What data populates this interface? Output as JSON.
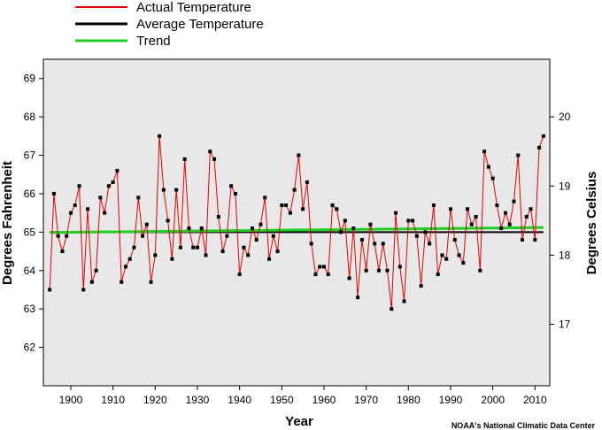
{
  "chart_data": {
    "type": "line",
    "title": "",
    "xlabel": "Year",
    "ylabel": "Degrees Fahrenheit",
    "y2label": "Degrees Celsius",
    "xlim": [
      1893.5,
      2013.5
    ],
    "ylim": [
      61.0,
      69.5
    ],
    "x_ticks": [
      1900,
      1910,
      1920,
      1930,
      1940,
      1950,
      1960,
      1970,
      1980,
      1990,
      2000,
      2010
    ],
    "y_ticks": [
      62,
      63,
      64,
      65,
      66,
      67,
      68,
      69
    ],
    "y2_ticks": [
      17,
      18,
      19,
      20
    ],
    "credit": "NOAA's National Climatic Data Center",
    "legend_position": "top-left",
    "grid": false,
    "plot_background": "#e8e8e8",
    "series": [
      {
        "name": "Actual Temperature",
        "color": "#e60000",
        "x": [
          1895,
          1896,
          1897,
          1898,
          1899,
          1900,
          1901,
          1902,
          1903,
          1904,
          1905,
          1906,
          1907,
          1908,
          1909,
          1910,
          1911,
          1912,
          1913,
          1914,
          1915,
          1916,
          1917,
          1918,
          1919,
          1920,
          1921,
          1922,
          1923,
          1924,
          1925,
          1926,
          1927,
          1928,
          1929,
          1930,
          1931,
          1932,
          1933,
          1934,
          1935,
          1936,
          1937,
          1938,
          1939,
          1940,
          1941,
          1942,
          1943,
          1944,
          1945,
          1946,
          1947,
          1948,
          1949,
          1950,
          1951,
          1952,
          1953,
          1954,
          1955,
          1956,
          1957,
          1958,
          1959,
          1960,
          1961,
          1962,
          1963,
          1964,
          1965,
          1966,
          1967,
          1968,
          1969,
          1970,
          1971,
          1972,
          1973,
          1974,
          1975,
          1976,
          1977,
          1978,
          1979,
          1980,
          1981,
          1982,
          1983,
          1984,
          1985,
          1986,
          1987,
          1988,
          1989,
          1990,
          1991,
          1992,
          1993,
          1994,
          1995,
          1996,
          1997,
          1998,
          1999,
          2000,
          2001,
          2002,
          2003,
          2004,
          2005,
          2006,
          2007,
          2008,
          2009,
          2010,
          2011,
          2012
        ],
        "values": [
          63.5,
          66.0,
          64.9,
          64.5,
          64.9,
          65.5,
          65.7,
          66.2,
          63.5,
          65.6,
          63.7,
          64.0,
          65.9,
          65.5,
          66.2,
          66.3,
          66.6,
          63.7,
          64.1,
          64.3,
          64.6,
          65.9,
          64.9,
          65.2,
          63.7,
          64.4,
          67.5,
          66.1,
          65.3,
          64.3,
          66.1,
          64.6,
          66.9,
          65.1,
          64.6,
          64.6,
          65.1,
          64.4,
          67.1,
          66.9,
          65.4,
          64.5,
          64.9,
          66.2,
          66.0,
          63.9,
          64.6,
          64.4,
          65.1,
          64.8,
          65.2,
          65.9,
          64.3,
          64.9,
          64.5,
          65.7,
          65.7,
          65.5,
          66.1,
          67.0,
          65.6,
          66.3,
          64.7,
          63.9,
          64.1,
          64.1,
          63.9,
          65.7,
          65.6,
          65.0,
          65.3,
          63.8,
          65.1,
          63.3,
          64.8,
          64.0,
          65.2,
          64.7,
          64.0,
          64.7,
          64.0,
          63.0,
          65.5,
          64.1,
          63.2,
          65.3,
          65.3,
          64.9,
          63.6,
          65.0,
          64.7,
          65.7,
          63.9,
          64.4,
          64.3,
          65.6,
          64.8,
          64.4,
          64.2,
          65.6,
          65.2,
          65.4,
          64.0,
          67.1,
          66.7,
          66.4,
          65.7,
          65.1,
          65.5,
          65.2,
          65.8,
          67.0,
          64.8,
          65.4,
          65.6,
          64.8,
          67.2,
          67.5
        ]
      },
      {
        "name": "Average Temperature",
        "color": "#000000",
        "x": [
          1895,
          2012
        ],
        "values": [
          65.0,
          65.0
        ]
      },
      {
        "name": "Trend",
        "color": "#1fcf1f",
        "x": [
          1895,
          2012
        ],
        "values": [
          64.99,
          65.12
        ]
      }
    ]
  }
}
